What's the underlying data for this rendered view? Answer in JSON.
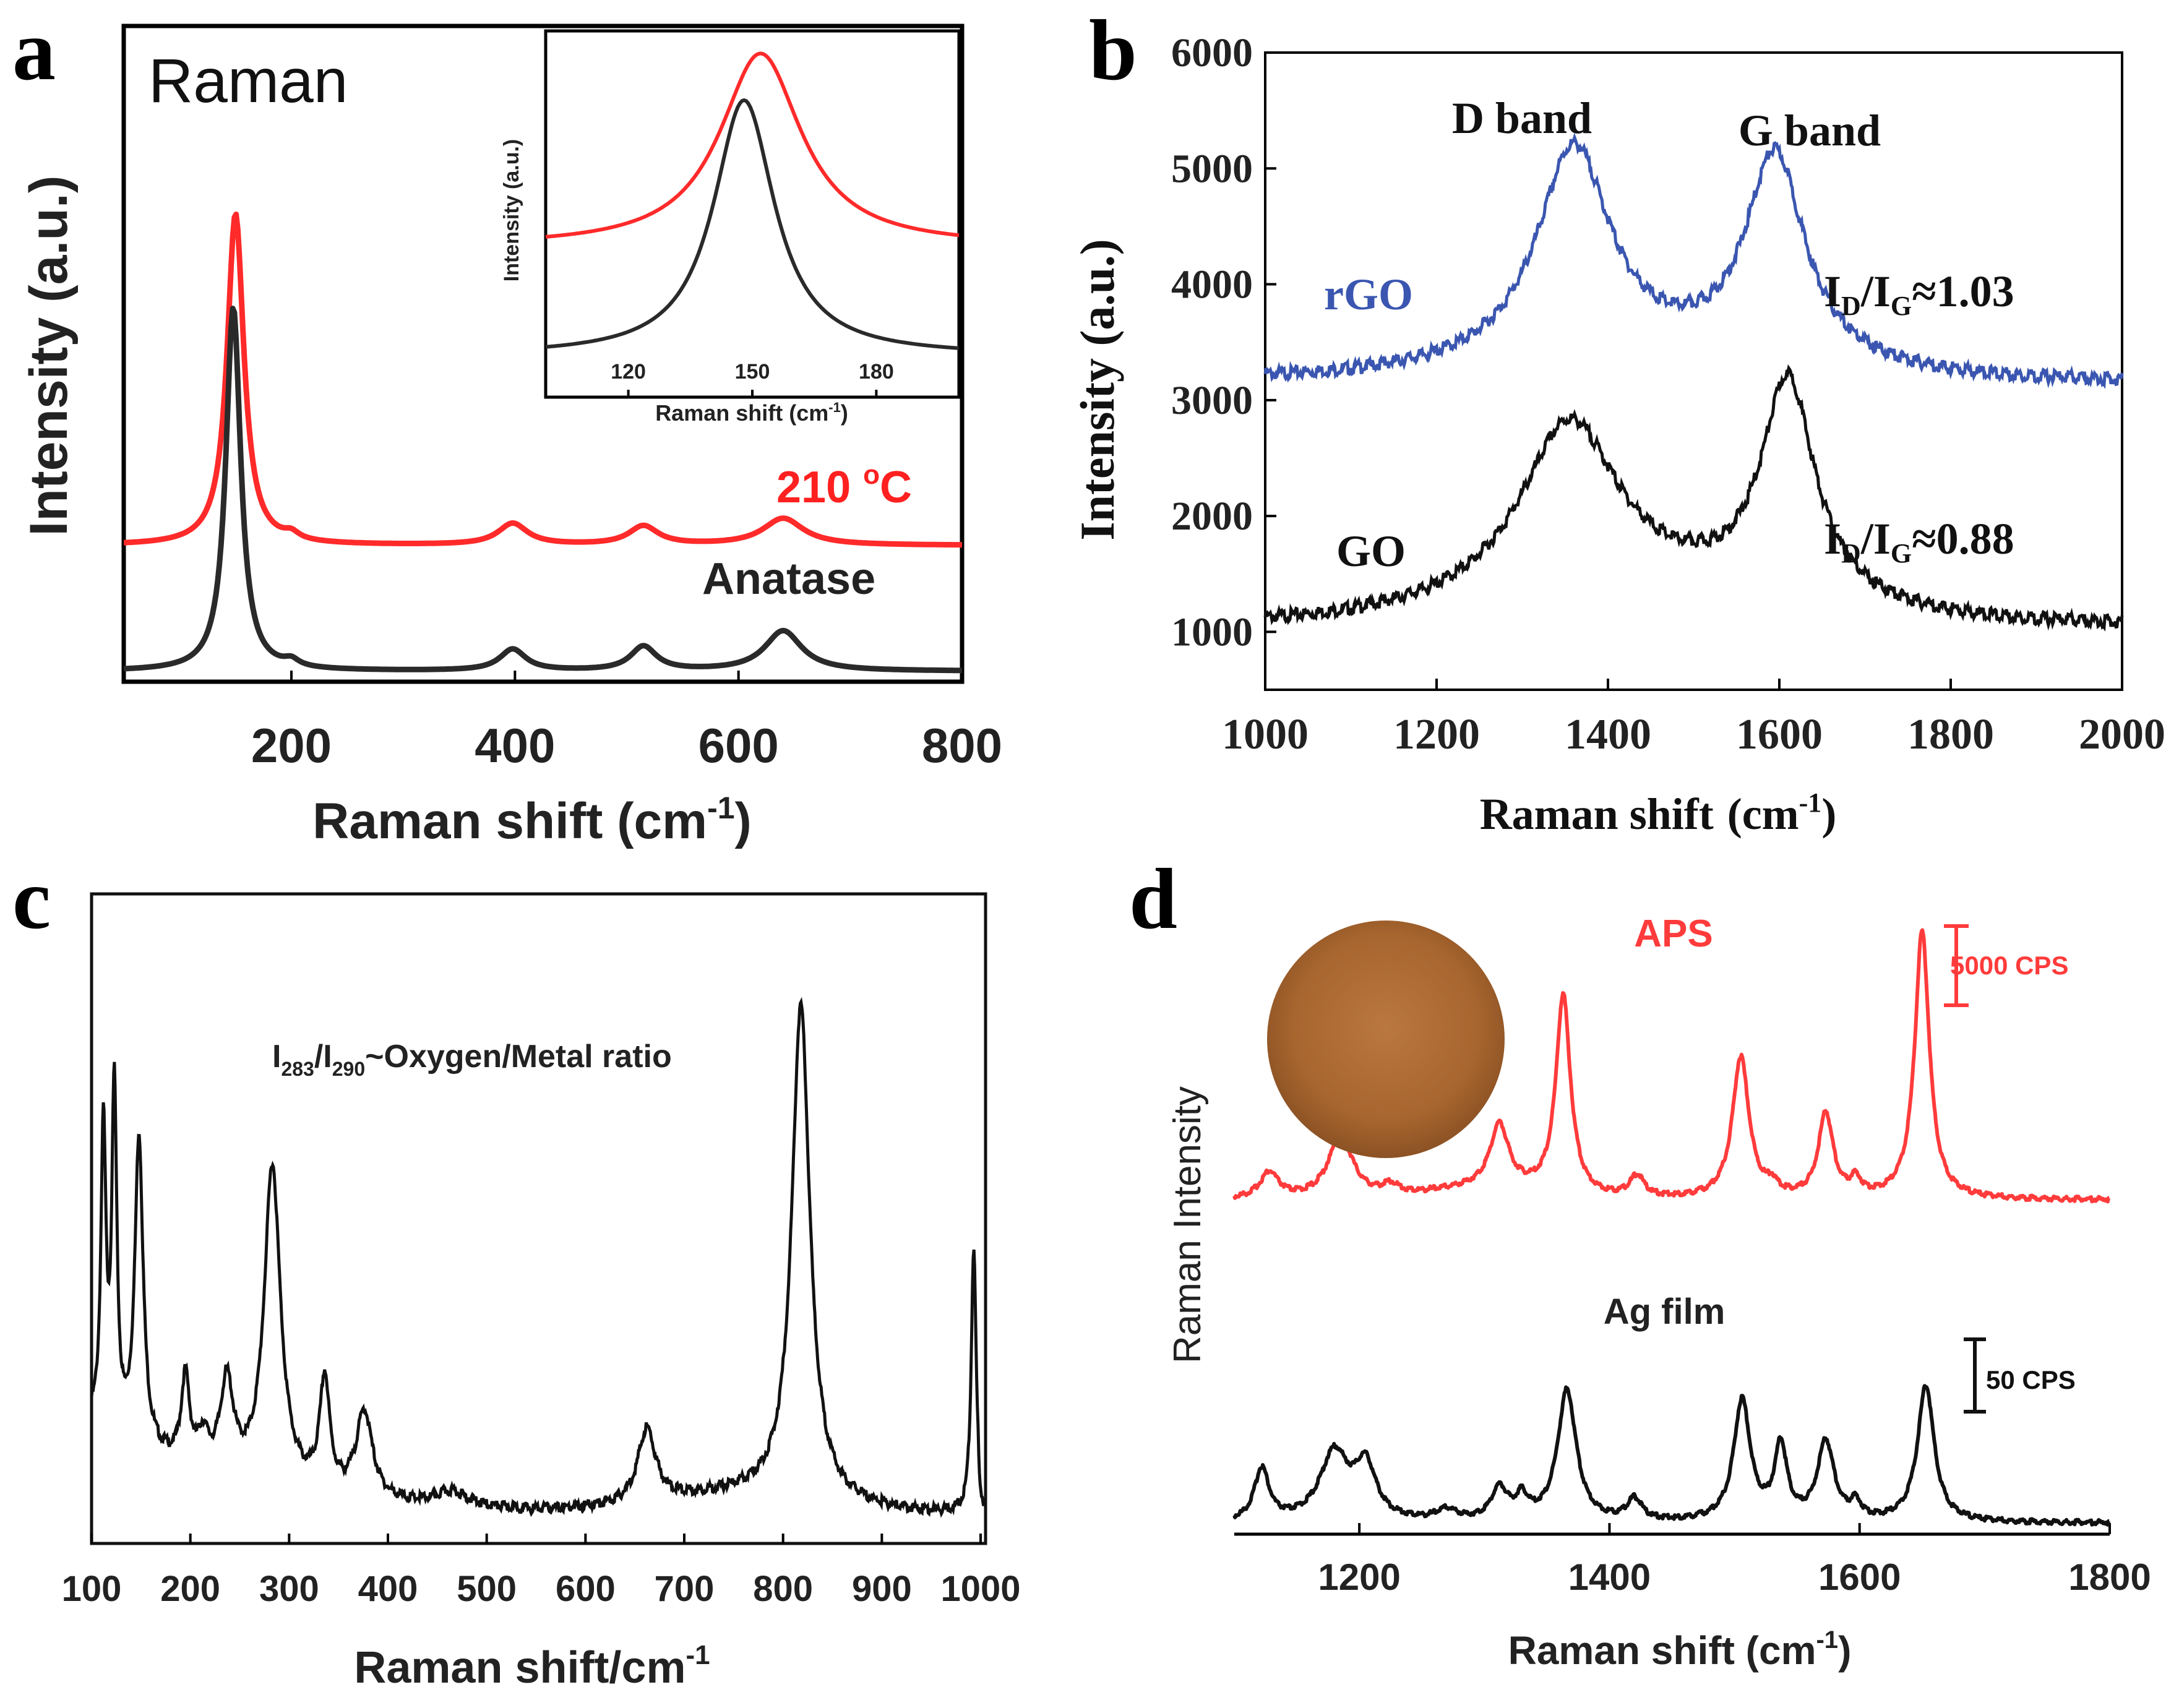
{
  "panels": [
    {
      "letter": "a",
      "type": "line",
      "title": "Raman",
      "xlabel_main": "Raman shift (cm",
      "xlabel_sup": "-1",
      "xlabel_end": ")",
      "ylabel": "Intensity (a.u.)",
      "xlim": [
        50,
        800
      ],
      "xticks": [
        200,
        400,
        600,
        800
      ],
      "series": [
        {
          "name": "210 °C",
          "label_main": "210 ",
          "label_sup": "o",
          "label_end": "C",
          "color": "#ff2a2a",
          "offset": 0.235,
          "peaks": [
            [
              150,
              0.62,
              9
            ],
            [
              200,
              0.012,
              8
            ],
            [
              398,
              0.04,
              16
            ],
            [
              515,
              0.035,
              16
            ],
            [
              640,
              0.05,
              22
            ]
          ]
        },
        {
          "name": "Anatase",
          "label": "Anatase",
          "color": "#2a2a2a",
          "offset": 0.0,
          "peaks": [
            [
              148,
              0.68,
              8
            ],
            [
              200,
              0.012,
              8
            ],
            [
              398,
              0.04,
              14
            ],
            [
              515,
              0.045,
              14
            ],
            [
              640,
              0.075,
              20
            ]
          ]
        }
      ],
      "inset": {
        "xlabel_main": "Raman shift (cm",
        "xlabel_sup": "-1",
        "xlabel_end": ")",
        "ylabel": "Intensity (a.u.)",
        "xlim": [
          100,
          200
        ],
        "xticks": [
          120,
          150,
          180
        ],
        "series": [
          {
            "color": "#ff2a2a",
            "center": 152,
            "height": 0.62,
            "width": 12,
            "base": 0.4
          },
          {
            "color": "#2a2a2a",
            "center": 148,
            "height": 0.82,
            "width": 9,
            "base": 0.05
          }
        ]
      }
    },
    {
      "letter": "b",
      "type": "line",
      "xlabel_main": "Raman shift",
      "xlabel_unit": "(cm",
      "xlabel_sup": "-1",
      "xlabel_end": ")",
      "ylabel": "Intensity (a.u.)",
      "xlim": [
        1000,
        2000
      ],
      "ylim": [
        500,
        6000
      ],
      "xticks": [
        1000,
        1200,
        1400,
        1600,
        1800,
        2000
      ],
      "yticks": [
        1000,
        2000,
        3000,
        4000,
        5000,
        6000
      ],
      "annotations": [
        "D band",
        "G band"
      ],
      "series": [
        {
          "name": "rGO",
          "label": "rGO",
          "ratio_sub1": "D",
          "ratio_sub2": "G",
          "ratio_value": "≈1.03",
          "color": "#3a56b0",
          "baseline_start": 3170,
          "baseline_end": 3150,
          "baseline_mid": 3330,
          "peaks": [
            [
              1360,
              1850,
              52
            ],
            [
              1595,
              1800,
              42
            ]
          ]
        },
        {
          "name": "GO",
          "label": "GO",
          "ratio_sub1": "D",
          "ratio_sub2": "G",
          "ratio_value": "≈0.88",
          "color": "#111111",
          "baseline_start": 1050,
          "baseline_end": 1050,
          "baseline_mid": 1300,
          "peaks": [
            [
              1355,
              1530,
              70
            ],
            [
              1610,
              1900,
              38
            ]
          ]
        }
      ]
    },
    {
      "letter": "c",
      "type": "line",
      "xlabel": "Raman shift/cm",
      "xlabel_sup": "-1",
      "annotation_main": "I",
      "annotation_sub1": "283",
      "annotation_mid": "/I",
      "annotation_sub2": "290",
      "annotation_end": "~Oxygen/Metal ratio",
      "xlim": [
        100,
        1005
      ],
      "xticks": [
        100,
        200,
        300,
        400,
        500,
        600,
        700,
        800,
        900,
        1000
      ],
      "series": [
        {
          "color": "#111111",
          "peaks": [
            [
              112,
              0.48,
              3
            ],
            [
              123,
              0.55,
              3
            ],
            [
              148,
              0.5,
              5
            ],
            [
              195,
              0.14,
              5
            ],
            [
              213,
              0.05,
              6
            ],
            [
              237,
              0.15,
              8
            ],
            [
              283,
              0.52,
              10
            ],
            [
              336,
              0.18,
              6
            ],
            [
              376,
              0.14,
              10
            ],
            [
              465,
              0.025,
              20
            ],
            [
              662,
              0.12,
              11
            ],
            [
              818,
              0.8,
              11
            ],
            [
              993,
              0.43,
              3
            ]
          ]
        }
      ]
    },
    {
      "letter": "d",
      "type": "line",
      "xlabel_main": "Raman shift (cm",
      "xlabel_sup": "-1",
      "xlabel_end": ")",
      "ylabel": "Raman Intensity",
      "xlim": [
        1100,
        1800
      ],
      "xticks": [
        1200,
        1400,
        1600,
        1800
      ],
      "scale_bars": [
        "5000 CPS",
        "50 CPS"
      ],
      "series": [
        {
          "name": "APS",
          "label": "APS",
          "color": "#ff3b3b",
          "peaks": [
            [
              1128,
              0.05,
              9
            ],
            [
              1185,
              0.12,
              12
            ],
            [
              1225,
              0.02,
              8
            ],
            [
              1312,
              0.12,
              9
            ],
            [
              1363,
              0.38,
              7
            ],
            [
              1422,
              0.04,
              7
            ],
            [
              1505,
              0.27,
              8
            ],
            [
              1530,
              0.02,
              5
            ],
            [
              1573,
              0.16,
              7
            ],
            [
              1597,
              0.03,
              5
            ],
            [
              1650,
              0.51,
              7
            ]
          ]
        },
        {
          "name": "Ag film",
          "label": "Ag film",
          "color": "#111111",
          "peaks": [
            [
              1122,
              0.1,
              7
            ],
            [
              1180,
              0.13,
              14
            ],
            [
              1205,
              0.1,
              10
            ],
            [
              1270,
              0.02,
              10
            ],
            [
              1312,
              0.06,
              8
            ],
            [
              1330,
              0.04,
              6
            ],
            [
              1366,
              0.25,
              9
            ],
            [
              1420,
              0.04,
              7
            ],
            [
              1506,
              0.23,
              8
            ],
            [
              1537,
              0.14,
              6
            ],
            [
              1573,
              0.15,
              8
            ],
            [
              1597,
              0.03,
              5
            ],
            [
              1653,
              0.26,
              8
            ]
          ]
        }
      ]
    }
  ]
}
